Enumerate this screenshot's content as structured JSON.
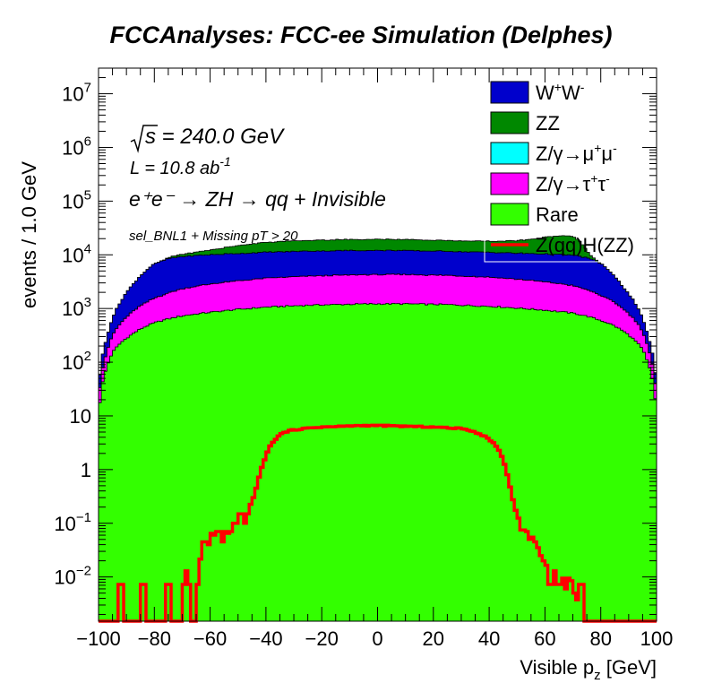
{
  "chart_data": {
    "type": "area",
    "title": "FCCAnalyses: FCC-ee Simulation (Delphes)",
    "xlabel": "Visible p",
    "xlabel_sub": "z",
    "xlabel_unit": " [GeV]",
    "ylabel": "events / 1.0 GeV",
    "xlim": [
      -100,
      100
    ],
    "ylim": [
      0.0015,
      30000000
    ],
    "log_y": true,
    "stacked": true,
    "bin_width": 1.0,
    "x_ticks": [
      -100,
      -80,
      -60,
      -40,
      -20,
      0,
      20,
      40,
      60,
      80,
      100
    ],
    "x_tick_labels": [
      "−100",
      "−80",
      "−60",
      "−40",
      "−20",
      "0",
      "20",
      "40",
      "60",
      "80",
      "100"
    ],
    "y_tick_labels": [
      {
        "value": 0.01,
        "base": "10",
        "exp": "−2"
      },
      {
        "value": 0.1,
        "base": "10",
        "exp": "−1"
      },
      {
        "value": 1,
        "base": "1",
        "exp": ""
      },
      {
        "value": 10,
        "base": "10",
        "exp": ""
      },
      {
        "value": 100,
        "base": "10",
        "exp": "2"
      },
      {
        "value": 1000,
        "base": "10",
        "exp": "3"
      },
      {
        "value": 10000,
        "base": "10",
        "exp": "4"
      },
      {
        "value": 100000,
        "base": "10",
        "exp": "5"
      },
      {
        "value": 1000000,
        "base": "10",
        "exp": "6"
      },
      {
        "value": 10000000,
        "base": "10",
        "exp": "7"
      }
    ],
    "annotations": {
      "sqrt_s": "s = 240.0 GeV",
      "lumi_prefix": "L = 10.8 ab",
      "lumi_exp": "-1",
      "process": "e⁺e⁻ → ZH → qq + Invisible",
      "selection": "sel_BNL1 + Missing pT > 20"
    },
    "legend_position": "top-right",
    "series": [
      {
        "key": "rare",
        "name": "Rare",
        "color": "#33ff00",
        "kind": "stack",
        "profile": [
          [
            -100,
            6
          ],
          [
            -99,
            30
          ],
          [
            -97,
            80
          ],
          [
            -95,
            150
          ],
          [
            -92,
            230
          ],
          [
            -88,
            330
          ],
          [
            -84,
            440
          ],
          [
            -80,
            540
          ],
          [
            -75,
            640
          ],
          [
            -70,
            730
          ],
          [
            -60,
            850
          ],
          [
            -50,
            960
          ],
          [
            -40,
            1060
          ],
          [
            -25,
            1150
          ],
          [
            -10,
            1200
          ],
          [
            0,
            1220
          ],
          [
            10,
            1220
          ],
          [
            25,
            1180
          ],
          [
            40,
            1100
          ],
          [
            50,
            1020
          ],
          [
            60,
            930
          ],
          [
            70,
            820
          ],
          [
            75,
            720
          ],
          [
            80,
            600
          ],
          [
            84,
            500
          ],
          [
            88,
            380
          ],
          [
            92,
            260
          ],
          [
            95,
            170
          ],
          [
            97,
            90
          ],
          [
            99,
            35
          ],
          [
            100,
            7
          ]
        ]
      },
      {
        "key": "tautau",
        "name": "Z/γ→τ⁺τ⁻",
        "color": "#ff00ff",
        "kind": "stack",
        "profile": [
          [
            -100,
            8
          ],
          [
            -99,
            25
          ],
          [
            -97,
            70
          ],
          [
            -95,
            160
          ],
          [
            -92,
            300
          ],
          [
            -88,
            520
          ],
          [
            -84,
            760
          ],
          [
            -80,
            1000
          ],
          [
            -75,
            1300
          ],
          [
            -70,
            1600
          ],
          [
            -60,
            2000
          ],
          [
            -50,
            2300
          ],
          [
            -40,
            2600
          ],
          [
            -25,
            2850
          ],
          [
            -10,
            3000
          ],
          [
            0,
            3050
          ],
          [
            10,
            3050
          ],
          [
            25,
            2950
          ],
          [
            40,
            2750
          ],
          [
            50,
            2500
          ],
          [
            60,
            2200
          ],
          [
            70,
            1850
          ],
          [
            75,
            1500
          ],
          [
            80,
            1150
          ],
          [
            84,
            880
          ],
          [
            88,
            600
          ],
          [
            92,
            360
          ],
          [
            95,
            190
          ],
          [
            97,
            85
          ],
          [
            99,
            30
          ],
          [
            100,
            9
          ]
        ]
      },
      {
        "key": "mumu",
        "name": "Z/γ→μ⁺μ⁻",
        "color": "#00ffff",
        "kind": "stack",
        "profile": [
          [
            -100,
            0
          ],
          [
            100,
            0
          ]
        ]
      },
      {
        "key": "ww",
        "name": "W⁺W⁻",
        "color": "#0000cc",
        "kind": "stack",
        "profile": [
          [
            -100,
            10
          ],
          [
            -99,
            40
          ],
          [
            -97,
            130
          ],
          [
            -95,
            330
          ],
          [
            -92,
            800
          ],
          [
            -88,
            1800
          ],
          [
            -84,
            3300
          ],
          [
            -80,
            5200
          ],
          [
            -75,
            6500
          ],
          [
            -70,
            7000
          ],
          [
            -60,
            7200
          ],
          [
            -50,
            7300
          ],
          [
            -40,
            7500
          ],
          [
            -25,
            7700
          ],
          [
            -10,
            7800
          ],
          [
            0,
            7800
          ],
          [
            10,
            7700
          ],
          [
            25,
            7500
          ],
          [
            40,
            7300
          ],
          [
            50,
            7200
          ],
          [
            60,
            7200
          ],
          [
            70,
            7200
          ],
          [
            75,
            6600
          ],
          [
            80,
            5200
          ],
          [
            84,
            3000
          ],
          [
            88,
            1500
          ],
          [
            92,
            700
          ],
          [
            95,
            280
          ],
          [
            97,
            110
          ],
          [
            99,
            35
          ],
          [
            100,
            12
          ]
        ]
      },
      {
        "key": "zz",
        "name": "ZZ",
        "color": "#008800",
        "kind": "stack",
        "profile": [
          [
            -100,
            0
          ],
          [
            -95,
            0
          ],
          [
            -90,
            0
          ],
          [
            -82,
            0
          ],
          [
            -78,
            0
          ],
          [
            -75,
            300
          ],
          [
            -73,
            700
          ],
          [
            -70,
            900
          ],
          [
            -65,
            1500
          ],
          [
            -60,
            2200
          ],
          [
            -55,
            3200
          ],
          [
            -50,
            4300
          ],
          [
            -45,
            5200
          ],
          [
            -40,
            5900
          ],
          [
            -30,
            6600
          ],
          [
            -20,
            7000
          ],
          [
            -10,
            7300
          ],
          [
            0,
            7400
          ],
          [
            10,
            7300
          ],
          [
            20,
            7000
          ],
          [
            30,
            6800
          ],
          [
            40,
            6800
          ],
          [
            50,
            7500
          ],
          [
            55,
            9000
          ],
          [
            60,
            11000
          ],
          [
            65,
            12500
          ],
          [
            68,
            12800
          ],
          [
            70,
            12000
          ],
          [
            73,
            7500
          ],
          [
            75,
            3000
          ],
          [
            77,
            800
          ],
          [
            80,
            0
          ],
          [
            85,
            0
          ],
          [
            100,
            0
          ]
        ]
      },
      {
        "key": "signal",
        "name": "Z(qq)H(ZZ)",
        "color": "#ff0000",
        "kind": "line",
        "profile": [
          [
            -100,
            0.0015
          ],
          [
            -93,
            0.0015
          ],
          [
            -92,
            0.013
          ],
          [
            -91,
            0.0015
          ],
          [
            -85,
            0.0015
          ],
          [
            -84,
            0.013
          ],
          [
            -83,
            0.0015
          ],
          [
            -76,
            0.0015
          ],
          [
            -75,
            0.013
          ],
          [
            -74,
            0.0015
          ],
          [
            -70,
            0.0015
          ],
          [
            -69,
            0.013
          ],
          [
            -68,
            0.013
          ],
          [
            -67,
            0.0015
          ],
          [
            -65,
            0.0015
          ],
          [
            -64,
            0.013
          ],
          [
            -63,
            0.03
          ],
          [
            -62,
            0.06
          ],
          [
            -61,
            0.03
          ],
          [
            -60,
            0.05
          ],
          [
            -59,
            0.08
          ],
          [
            -58,
            0.04
          ],
          [
            -57,
            0.1
          ],
          [
            -56,
            0.04
          ],
          [
            -55,
            0.05
          ],
          [
            -54,
            0.09
          ],
          [
            -53,
            0.04
          ],
          [
            -52,
            0.1
          ],
          [
            -51,
            0.1
          ],
          [
            -50,
            0.1
          ],
          [
            -49,
            0.2
          ],
          [
            -48,
            0.1
          ],
          [
            -47,
            0.1
          ],
          [
            -46,
            0.2
          ],
          [
            -45,
            0.25
          ],
          [
            -44,
            0.35
          ],
          [
            -43,
            0.55
          ],
          [
            -42,
            0.9
          ],
          [
            -41,
            1.3
          ],
          [
            -40,
            1.8
          ],
          [
            -39,
            2.4
          ],
          [
            -38,
            3.0
          ],
          [
            -37,
            3.5
          ],
          [
            -36,
            4.0
          ],
          [
            -35,
            4.4
          ],
          [
            -34,
            4.8
          ],
          [
            -32,
            5.2
          ],
          [
            -30,
            5.5
          ],
          [
            -25,
            5.9
          ],
          [
            -20,
            6.2
          ],
          [
            -15,
            6.3
          ],
          [
            -10,
            6.5
          ],
          [
            -5,
            6.6
          ],
          [
            0,
            6.6
          ],
          [
            5,
            6.5
          ],
          [
            10,
            6.4
          ],
          [
            15,
            6.3
          ],
          [
            20,
            6.2
          ],
          [
            25,
            6.0
          ],
          [
            30,
            5.8
          ],
          [
            33,
            5.4
          ],
          [
            35,
            5.0
          ],
          [
            37,
            4.5
          ],
          [
            39,
            4.0
          ],
          [
            41,
            3.3
          ],
          [
            43,
            2.6
          ],
          [
            44,
            2.0
          ],
          [
            45,
            1.5
          ],
          [
            46,
            1.0
          ],
          [
            47,
            0.6
          ],
          [
            48,
            0.35
          ],
          [
            49,
            0.2
          ],
          [
            50,
            0.15
          ],
          [
            51,
            0.1
          ],
          [
            52,
            0.05
          ],
          [
            53,
            0.1
          ],
          [
            54,
            0.04
          ],
          [
            55,
            0.06
          ],
          [
            56,
            0.05
          ],
          [
            57,
            0.04
          ],
          [
            58,
            0.03
          ],
          [
            59,
            0.02
          ],
          [
            60,
            0.02
          ],
          [
            61,
            0.013
          ],
          [
            62,
            0.0015
          ],
          [
            63,
            0.013
          ],
          [
            64,
            0.013
          ],
          [
            65,
            0.0015
          ],
          [
            66,
            0.013
          ],
          [
            67,
            0.006
          ],
          [
            68,
            0.006
          ],
          [
            69,
            0.013
          ],
          [
            70,
            0.004
          ],
          [
            71,
            0.006
          ],
          [
            72,
            0.0015
          ],
          [
            73,
            0.013
          ],
          [
            74,
            0.0015
          ],
          [
            100,
            0.0015
          ]
        ]
      }
    ],
    "legend_entries": [
      {
        "label": "W",
        "sup1": "+",
        "label2": "W",
        "sup2": "-",
        "color": "#0000cc",
        "kind": "box"
      },
      {
        "label": "ZZ",
        "color": "#008800",
        "kind": "box"
      },
      {
        "label": "Z/γ→μ",
        "sup1": "+",
        "label2": "μ",
        "sup2": "-",
        "color": "#00ffff",
        "kind": "box"
      },
      {
        "label": "Z/γ→τ",
        "sup1": "+",
        "label2": "τ",
        "sup2": "-",
        "color": "#ff00ff",
        "kind": "box"
      },
      {
        "label": "Rare",
        "color": "#33ff00",
        "kind": "box"
      },
      {
        "label": "Z(qq)H(ZZ)",
        "color": "#ff0000",
        "kind": "line"
      }
    ]
  }
}
